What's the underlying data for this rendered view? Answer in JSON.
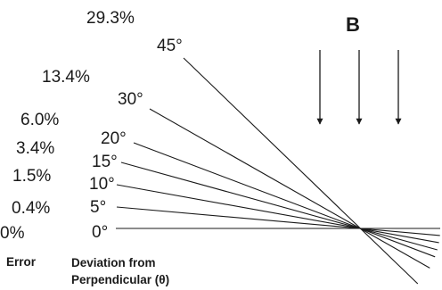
{
  "diagram": {
    "field_label": "B",
    "rows": [
      {
        "degree": "0°",
        "error": "0%",
        "angle": 0
      },
      {
        "degree": "5°",
        "error": "0.4%",
        "angle": 5
      },
      {
        "degree": "10°",
        "error": "1.5%",
        "angle": 10
      },
      {
        "degree": "15°",
        "error": "3.4%",
        "angle": 15
      },
      {
        "degree": "20°",
        "error": "6.0%",
        "angle": 20
      },
      {
        "degree": "30°",
        "error": "13.4%",
        "angle": 30
      },
      {
        "degree": "45°",
        "error": "29.3%",
        "angle": 45
      }
    ],
    "arrows": 3,
    "caption_error": "Error",
    "caption_deviation_line1": "Deviation from",
    "caption_deviation_line2": "Perpendicular (θ)"
  }
}
